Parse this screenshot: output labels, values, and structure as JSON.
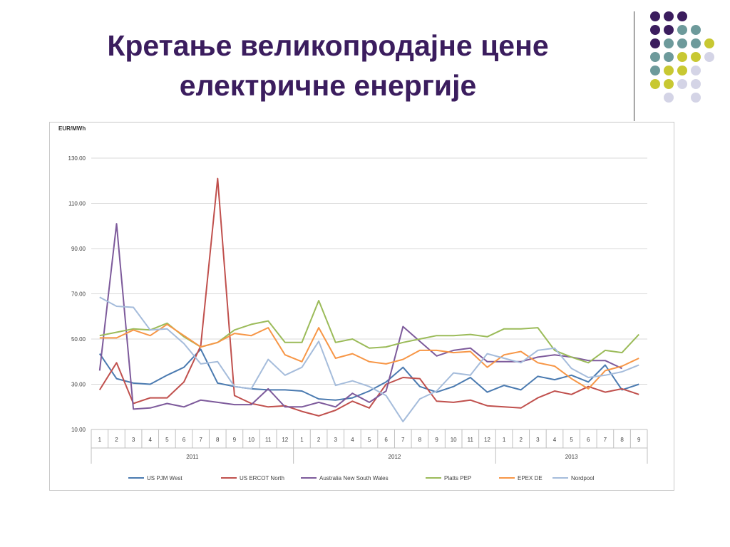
{
  "slide": {
    "title_line1": "Кретање великопродајне цене",
    "title_line2": "електричне енергије"
  },
  "decoration": {
    "colors": {
      "purple": "#3b1d5e",
      "teal": "#6d9a9b",
      "yellow": "#c8c832",
      "lavender": "#d4d4e6"
    }
  },
  "chart_data": {
    "type": "line",
    "ylabel": "EUR/MWh",
    "ylim": [
      10,
      130
    ],
    "yticks": [
      "10.00",
      "30.00",
      "50.00",
      "70.00",
      "90.00",
      "110.00",
      "130.00"
    ],
    "grid": true,
    "legend_position": "bottom",
    "categories": [
      "1",
      "2",
      "3",
      "4",
      "5",
      "6",
      "7",
      "8",
      "9",
      "10",
      "11",
      "12",
      "1",
      "2",
      "3",
      "4",
      "5",
      "6",
      "7",
      "8",
      "9",
      "10",
      "11",
      "12",
      "1",
      "2",
      "3",
      "4",
      "5",
      "6",
      "7",
      "8",
      "9"
    ],
    "year_groups": [
      {
        "label": "2011",
        "count": 12
      },
      {
        "label": "2012",
        "count": 12
      },
      {
        "label": "2013",
        "count": 9
      }
    ],
    "series": [
      {
        "name": "US PJM West",
        "color": "#4a7ab0",
        "values": [
          43.5,
          32.5,
          30.5,
          30,
          34,
          37.5,
          45.5,
          30.5,
          29,
          28,
          27.5,
          27.5,
          27,
          23.5,
          23,
          24,
          27,
          31,
          37.5,
          29,
          26.5,
          29,
          33,
          26.5,
          29.5,
          27.5,
          33.5,
          32,
          34,
          31,
          38.5,
          27.5,
          30
        ]
      },
      {
        "name": "US ERCOT North",
        "color": "#c0504d",
        "values": [
          27.5,
          39.5,
          21.5,
          24,
          24,
          31,
          47,
          121,
          25,
          21.5,
          20,
          20.5,
          18,
          16,
          18.5,
          22.5,
          19.5,
          30,
          33,
          32.5,
          22.5,
          22,
          23,
          20.5,
          20,
          19.5,
          24,
          27,
          25.5,
          29,
          26.5,
          28,
          25.5
        ]
      },
      {
        "name": "Australia New South Wales",
        "color": "#7d5a9b",
        "values": [
          36,
          101,
          19,
          19.5,
          21.5,
          20,
          23,
          22,
          21,
          21,
          28,
          20,
          20,
          22,
          20,
          26,
          22,
          27,
          55.5,
          49,
          42.5,
          45,
          46,
          40,
          40,
          40,
          42,
          43,
          42,
          40.5,
          40.5,
          37,
          null
        ]
      },
      {
        "name": "Platts PEP",
        "color": "#9bbb59",
        "values": [
          51.5,
          53,
          54.5,
          54,
          57,
          51,
          46.5,
          48.5,
          54,
          56.5,
          58,
          48.5,
          48.5,
          67,
          48.5,
          50,
          46,
          46.5,
          48.5,
          50,
          51.5,
          51.5,
          52,
          51,
          54.5,
          54.5,
          55,
          45,
          42,
          39.5,
          45,
          44,
          52
        ]
      },
      {
        "name": "EPEX DE",
        "color": "#f79646",
        "values": [
          50.5,
          50.5,
          54,
          51.5,
          56.5,
          51.5,
          46.5,
          48.5,
          52.5,
          51.5,
          55,
          43,
          40,
          55,
          41.5,
          43.5,
          40,
          39,
          41,
          45,
          45,
          44,
          44.5,
          37.5,
          43,
          44.5,
          39.5,
          38,
          32.5,
          28,
          36,
          38,
          41.5
        ]
      },
      {
        "name": "Nordpool",
        "color": "#a5bcdb",
        "values": [
          68.5,
          64.5,
          64,
          54,
          54.5,
          48,
          39,
          40,
          29,
          28,
          41,
          34,
          37.5,
          49,
          29.5,
          31.5,
          29,
          25,
          13.5,
          23.5,
          27,
          35,
          34,
          43.5,
          41.5,
          39.5,
          45,
          46,
          37,
          33,
          34,
          35.5,
          38.5
        ]
      }
    ]
  }
}
